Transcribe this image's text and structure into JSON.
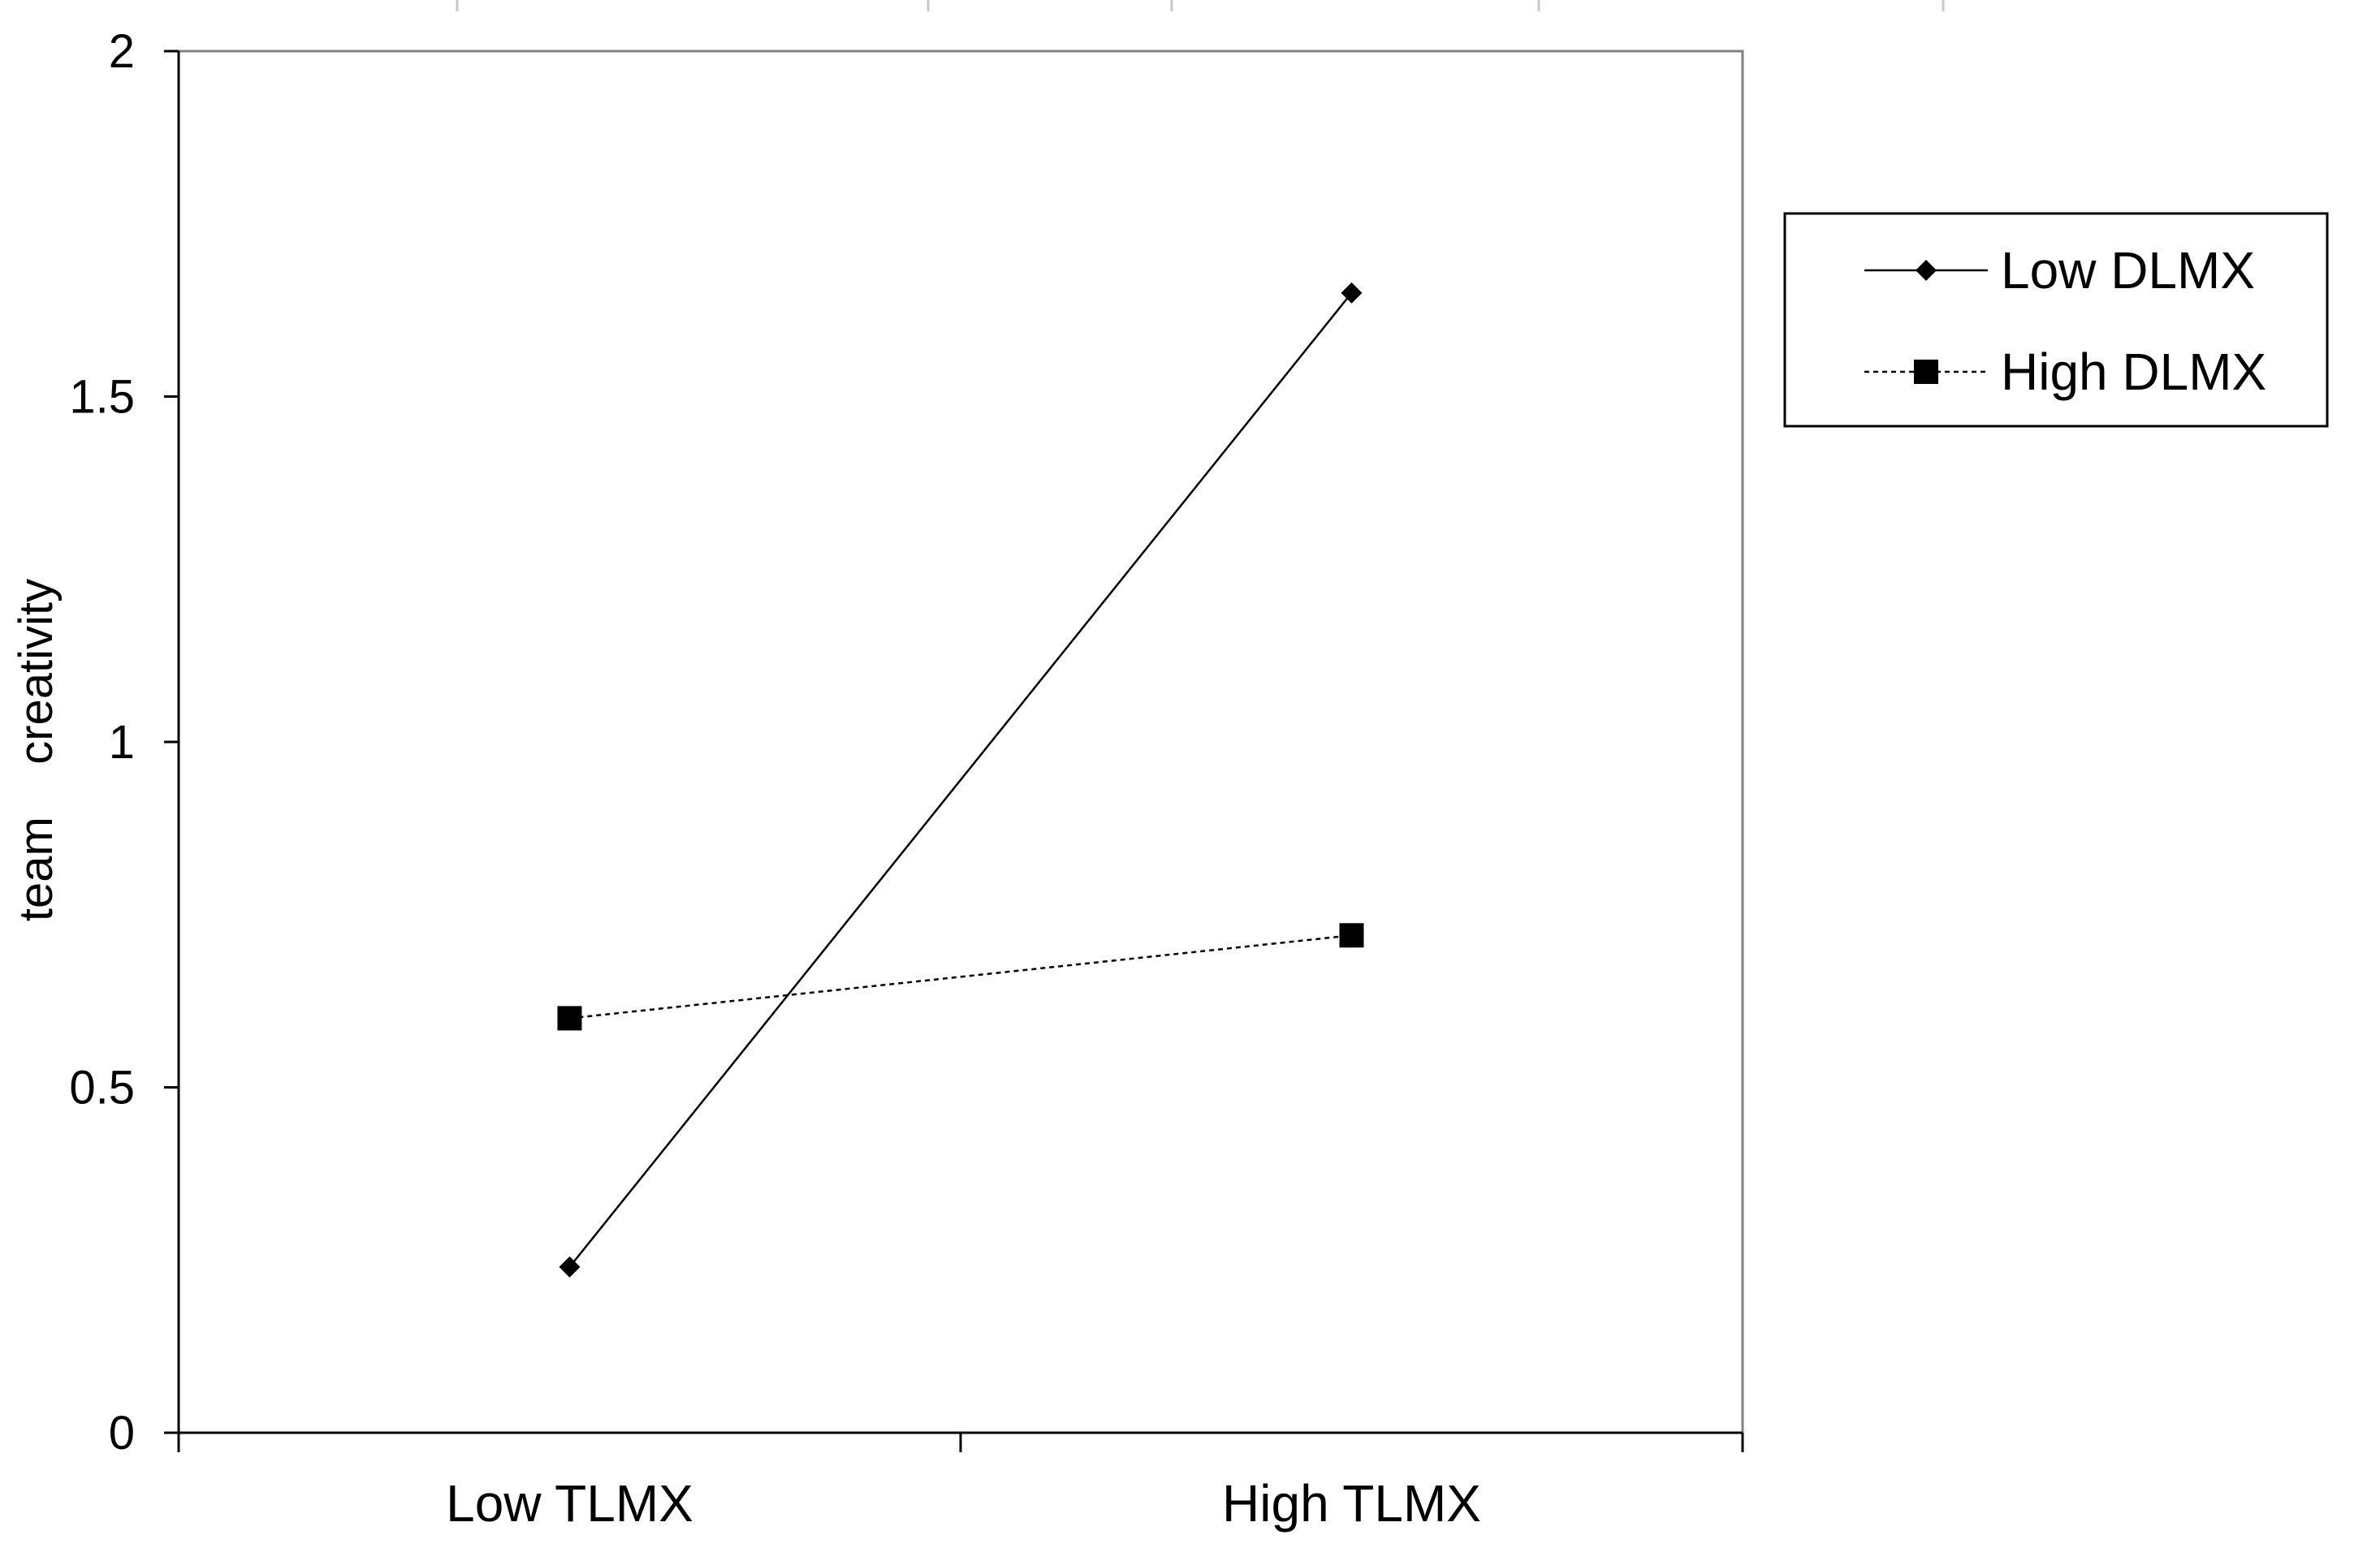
{
  "chart_data": {
    "type": "line",
    "title": "",
    "xlabel": "",
    "ylabel": "team    creativity",
    "categories": [
      "Low TLMX",
      "High TLMX"
    ],
    "ylim": [
      0,
      2
    ],
    "yticks": [
      "0",
      "0.5",
      "1",
      "1.5",
      "2"
    ],
    "grid": false,
    "legend_position": "right",
    "series": [
      {
        "name": "Low DLMX",
        "values": [
          0.24,
          1.65
        ],
        "marker": "diamond",
        "line_style": "solid",
        "color": "#000000"
      },
      {
        "name": "High DLMX",
        "values": [
          0.6,
          0.72
        ],
        "marker": "square",
        "line_style": "dotted",
        "color": "#000000"
      }
    ]
  }
}
